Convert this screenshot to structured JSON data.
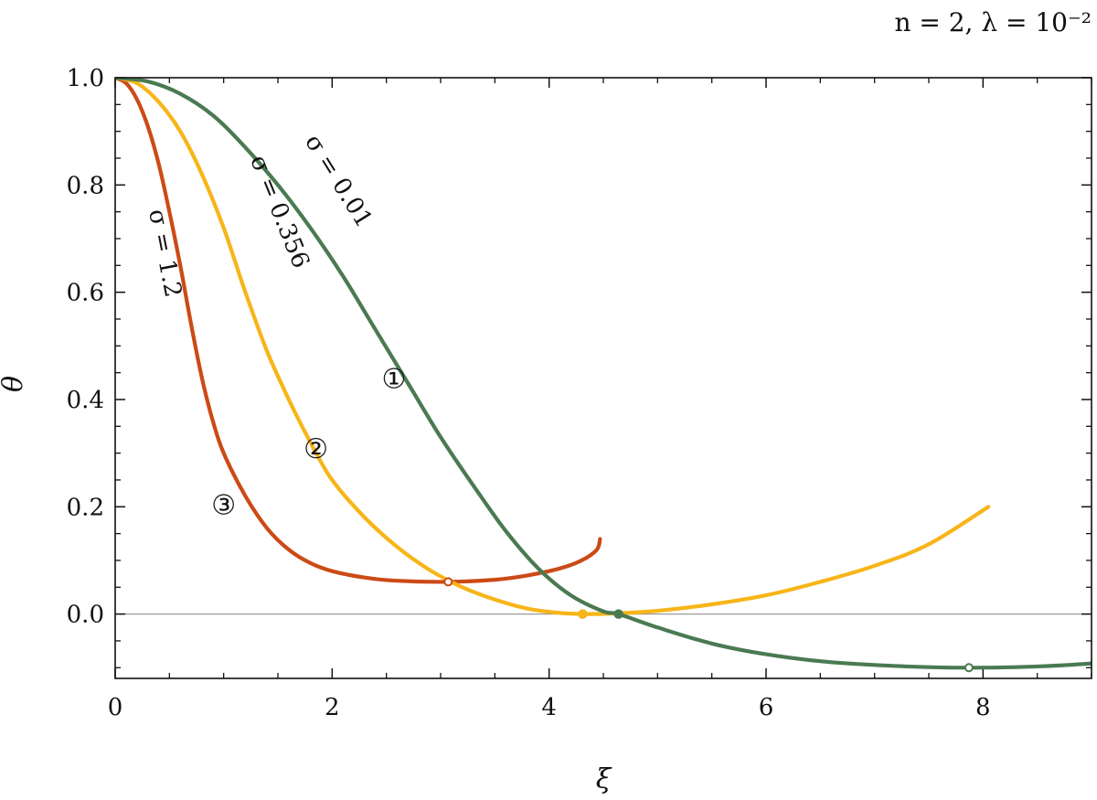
{
  "chart_data": {
    "type": "line",
    "title": "",
    "annotation": "n = 2,  λ = 10⁻²",
    "xlabel": "ξ",
    "ylabel": "θ",
    "xlim": [
      0,
      9
    ],
    "ylim": [
      -0.12,
      1.0
    ],
    "xticks": [
      0,
      2,
      4,
      6,
      8
    ],
    "xtick_labels": [
      "0",
      "2",
      "4",
      "6",
      "8"
    ],
    "yticks": [
      0.0,
      0.2,
      0.4,
      0.6,
      0.8,
      1.0
    ],
    "ytick_labels": [
      "0.0",
      "0.2",
      "0.4",
      "0.6",
      "0.8",
      "1.0"
    ],
    "grid": false,
    "reference_line_y": 0,
    "series": [
      {
        "name": "σ = 0.01",
        "marker_label": "①",
        "color": "#4a7a52",
        "points": [
          [
            0,
            1.0
          ],
          [
            0.3,
            0.993
          ],
          [
            0.6,
            0.97
          ],
          [
            0.9,
            0.93
          ],
          [
            1.2,
            0.87
          ],
          [
            1.5,
            0.8
          ],
          [
            1.8,
            0.72
          ],
          [
            2.1,
            0.63
          ],
          [
            2.4,
            0.53
          ],
          [
            2.7,
            0.43
          ],
          [
            3.0,
            0.33
          ],
          [
            3.3,
            0.24
          ],
          [
            3.6,
            0.155
          ],
          [
            3.9,
            0.085
          ],
          [
            4.2,
            0.035
          ],
          [
            4.5,
            0.005
          ],
          [
            4.64,
            0.0
          ],
          [
            5.0,
            -0.025
          ],
          [
            5.5,
            -0.055
          ],
          [
            6.0,
            -0.075
          ],
          [
            6.5,
            -0.088
          ],
          [
            7.0,
            -0.095
          ],
          [
            7.5,
            -0.099
          ],
          [
            7.87,
            -0.1
          ],
          [
            8.3,
            -0.099
          ],
          [
            8.7,
            -0.096
          ],
          [
            9.0,
            -0.092
          ]
        ],
        "open_markers": [
          [
            7.87,
            -0.1
          ]
        ],
        "filled_markers": [
          [
            4.64,
            0.0
          ]
        ]
      },
      {
        "name": "σ = 0.356",
        "marker_label": "②",
        "color": "#f7b518",
        "points": [
          [
            0,
            1.0
          ],
          [
            0.2,
            0.99
          ],
          [
            0.4,
            0.955
          ],
          [
            0.6,
            0.9
          ],
          [
            0.8,
            0.82
          ],
          [
            1.0,
            0.72
          ],
          [
            1.2,
            0.6
          ],
          [
            1.4,
            0.49
          ],
          [
            1.6,
            0.4
          ],
          [
            1.8,
            0.32
          ],
          [
            2.0,
            0.25
          ],
          [
            2.3,
            0.18
          ],
          [
            2.6,
            0.125
          ],
          [
            2.9,
            0.082
          ],
          [
            3.2,
            0.05
          ],
          [
            3.5,
            0.027
          ],
          [
            3.8,
            0.01
          ],
          [
            4.1,
            0.002
          ],
          [
            4.31,
            0.0
          ],
          [
            4.6,
            0.001
          ],
          [
            5.0,
            0.006
          ],
          [
            5.5,
            0.018
          ],
          [
            6.0,
            0.035
          ],
          [
            6.5,
            0.06
          ],
          [
            7.0,
            0.09
          ],
          [
            7.5,
            0.13
          ],
          [
            8.05,
            0.2
          ]
        ],
        "open_markers": [],
        "filled_markers": [
          [
            4.31,
            0.0
          ]
        ]
      },
      {
        "name": "σ = 1.2",
        "marker_label": "③",
        "color": "#cc4a16",
        "points": [
          [
            0,
            1.0
          ],
          [
            0.1,
            0.99
          ],
          [
            0.2,
            0.96
          ],
          [
            0.3,
            0.91
          ],
          [
            0.4,
            0.84
          ],
          [
            0.5,
            0.75
          ],
          [
            0.6,
            0.65
          ],
          [
            0.7,
            0.54
          ],
          [
            0.8,
            0.44
          ],
          [
            0.9,
            0.36
          ],
          [
            1.0,
            0.3
          ],
          [
            1.2,
            0.22
          ],
          [
            1.4,
            0.16
          ],
          [
            1.6,
            0.12
          ],
          [
            1.8,
            0.095
          ],
          [
            2.0,
            0.08
          ],
          [
            2.3,
            0.068
          ],
          [
            2.6,
            0.062
          ],
          [
            3.07,
            0.06
          ],
          [
            3.5,
            0.064
          ],
          [
            3.8,
            0.072
          ],
          [
            4.1,
            0.085
          ],
          [
            4.3,
            0.1
          ],
          [
            4.44,
            0.12
          ],
          [
            4.47,
            0.14
          ]
        ],
        "open_markers": [
          [
            3.07,
            0.06
          ]
        ],
        "filled_markers": []
      }
    ]
  }
}
